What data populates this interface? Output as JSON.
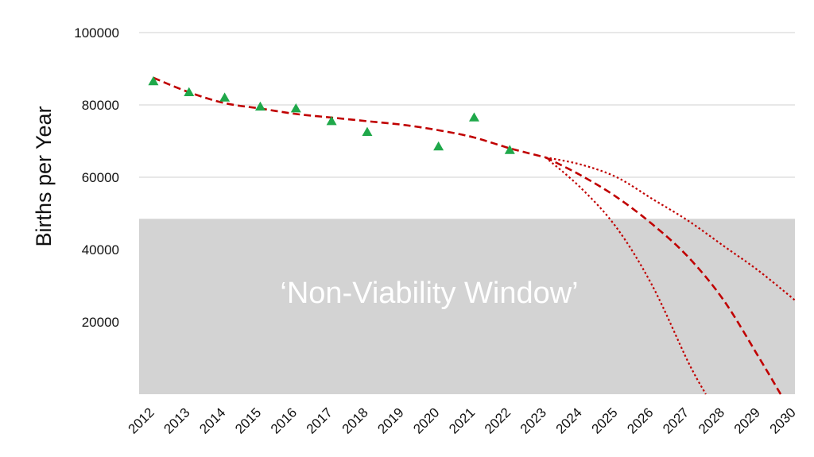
{
  "chart_data": {
    "type": "scatter",
    "title": "",
    "xlabel": "",
    "ylabel": "Births per Year",
    "xlim": [
      2011.6,
      2030
    ],
    "ylim": [
      0,
      100000
    ],
    "y_ticks": [
      20000,
      40000,
      60000,
      80000,
      100000
    ],
    "x_ticks": [
      2012,
      2013,
      2014,
      2015,
      2016,
      2017,
      2018,
      2019,
      2020,
      2021,
      2022,
      2023,
      2024,
      2025,
      2026,
      2027,
      2028,
      2029,
      2030
    ],
    "grid": true,
    "legend": "none",
    "observed": {
      "color": "#1fa84a",
      "marker": "triangle",
      "x": [
        2012,
        2013,
        2014,
        2015,
        2016,
        2017,
        2018,
        2020,
        2021,
        2022
      ],
      "y": [
        86500,
        83500,
        82000,
        79500,
        79000,
        75500,
        72500,
        68500,
        76500,
        67500
      ]
    },
    "trend_fit": {
      "color": "#c00000",
      "style": "dashed",
      "x": [
        2012,
        2013,
        2014,
        2015,
        2016,
        2017,
        2018,
        2019,
        2020,
        2021,
        2022,
        2023
      ],
      "y": [
        87500,
        83500,
        80500,
        79000,
        77500,
        76500,
        75500,
        74500,
        73000,
        71000,
        68000,
        65500
      ]
    },
    "projections": [
      {
        "style": "dotted",
        "color": "#c00000",
        "x": [
          2023,
          2024,
          2025,
          2026,
          2027,
          2028,
          2029,
          2030
        ],
        "y": [
          65500,
          63500,
          60000,
          54000,
          48000,
          41000,
          34000,
          26000
        ]
      },
      {
        "style": "dashed",
        "color": "#c00000",
        "x": [
          2023,
          2024,
          2025,
          2026,
          2027,
          2028,
          2029,
          2029.6
        ],
        "y": [
          65500,
          60500,
          54500,
          47000,
          38000,
          26000,
          10000,
          0
        ]
      },
      {
        "style": "dotted",
        "color": "#c00000",
        "x": [
          2023,
          2024,
          2025,
          2026,
          2027,
          2027.5
        ],
        "y": [
          65500,
          57000,
          46000,
          30000,
          9000,
          0
        ]
      }
    ],
    "shaded_region": {
      "label": "‘Non-Viability Window’",
      "y_range": [
        0,
        48500
      ],
      "color": "#d3d3d3"
    }
  }
}
